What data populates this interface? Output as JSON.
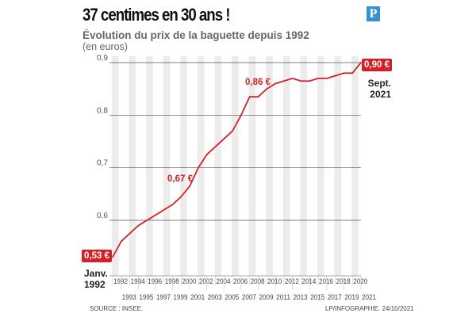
{
  "header": {
    "title": "37 centimes en 30 ans !",
    "subtitle": "Évolution du prix de la baguette depuis 1992",
    "unit": "(en euros)",
    "logo": "P"
  },
  "chart_data": {
    "type": "line",
    "title": "Évolution du prix de la baguette depuis 1992",
    "ylabel": "(en euros)",
    "ylim": [
      0.52,
      0.91
    ],
    "yticks": [
      {
        "v": 0.6,
        "label": "0,6"
      },
      {
        "v": 0.7,
        "label": "0,7"
      },
      {
        "v": 0.8,
        "label": "0,8"
      },
      {
        "v": 0.9,
        "label": "0,9"
      }
    ],
    "xlim": [
      1992,
      2021
    ],
    "x": [
      1992,
      1993,
      1994,
      1995,
      1996,
      1997,
      1998,
      1999,
      2000,
      2001,
      2002,
      2003,
      2004,
      2005,
      2006,
      2007,
      2008,
      2009,
      2010,
      2011,
      2012,
      2013,
      2014,
      2015,
      2016,
      2017,
      2018,
      2019,
      2020,
      2021
    ],
    "values": [
      0.53,
      0.56,
      0.575,
      0.59,
      0.6,
      0.61,
      0.62,
      0.63,
      0.645,
      0.665,
      0.7,
      0.725,
      0.74,
      0.755,
      0.77,
      0.8,
      0.835,
      0.835,
      0.85,
      0.86,
      0.865,
      0.87,
      0.865,
      0.865,
      0.87,
      0.87,
      0.875,
      0.88,
      0.88,
      0.9
    ],
    "series_color": "#d42027",
    "annotations": [
      {
        "label": "0,53 €",
        "note": [
          "Janv.",
          "1992"
        ]
      },
      {
        "label": "0,67 €"
      },
      {
        "label": "0,86 €"
      },
      {
        "label": "0,90 €",
        "note": [
          "Sept.",
          "2021"
        ]
      }
    ]
  },
  "footer": {
    "source": "SOURCE : INSEE.",
    "credit": "LP/INFOGRAPHIE.  24/10/2021"
  }
}
